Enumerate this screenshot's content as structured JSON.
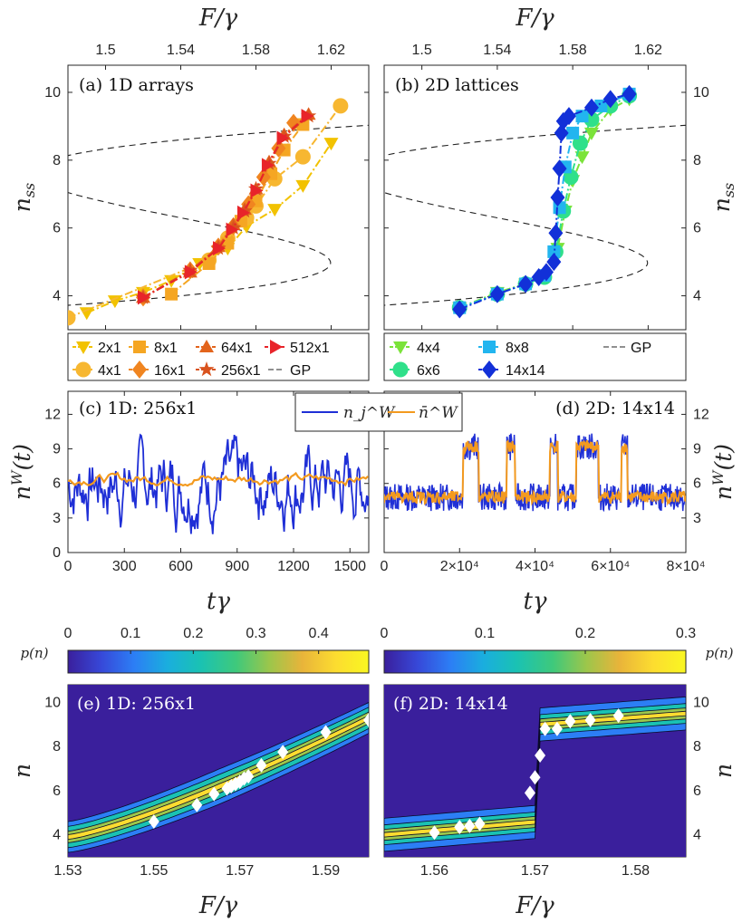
{
  "chart_data": [
    {
      "id": "a",
      "type": "line",
      "title": "(a) 1D arrays",
      "xlabel": "F/γ",
      "ylabel": "n_ss",
      "xlim": [
        1.48,
        1.64
      ],
      "ylim": [
        3,
        10.8
      ],
      "xticks": [
        "1.5",
        "1.54",
        "1.58",
        "1.62"
      ],
      "yticks": [
        "4",
        "6",
        "8",
        "10"
      ],
      "series": [
        {
          "name": "2x1",
          "color": "#f2c200",
          "marker": "tri-down",
          "x": [
            1.49,
            1.505,
            1.52,
            1.535,
            1.55,
            1.565,
            1.575,
            1.59,
            1.605,
            1.62
          ],
          "y": [
            3.5,
            3.85,
            4.1,
            4.45,
            4.95,
            5.4,
            6.05,
            6.55,
            7.25,
            8.5
          ]
        },
        {
          "name": "4x1",
          "color": "#f7b731",
          "marker": "circle",
          "x": [
            1.48,
            1.555,
            1.565,
            1.575,
            1.58,
            1.59,
            1.605,
            1.625
          ],
          "y": [
            3.35,
            5.05,
            5.7,
            6.3,
            6.65,
            7.45,
            8.1,
            9.6
          ]
        },
        {
          "name": "8x1",
          "color": "#f5a623",
          "marker": "square",
          "x": [
            1.535,
            1.555,
            1.565,
            1.572,
            1.58,
            1.588,
            1.595,
            1.605
          ],
          "y": [
            4.05,
            4.95,
            5.55,
            6.2,
            6.8,
            7.6,
            8.3,
            9.05
          ]
        },
        {
          "name": "16x1",
          "color": "#f08520",
          "marker": "diamond",
          "x": [
            1.52,
            1.545,
            1.56,
            1.568,
            1.576,
            1.584,
            1.592,
            1.6
          ],
          "y": [
            3.95,
            4.75,
            5.45,
            6.05,
            6.7,
            7.5,
            8.35,
            9.1
          ]
        },
        {
          "name": "64x1",
          "color": "#e3641c",
          "marker": "triangle",
          "x": [
            1.52,
            1.545,
            1.56,
            1.568,
            1.574,
            1.58,
            1.587,
            1.595,
            1.608
          ],
          "y": [
            3.95,
            4.7,
            5.45,
            6.1,
            6.55,
            7.15,
            7.95,
            8.75,
            9.35
          ]
        },
        {
          "name": "256x1",
          "color": "#d9531e",
          "marker": "star",
          "x": [
            1.52,
            1.545,
            1.56,
            1.568,
            1.574,
            1.58,
            1.587,
            1.595,
            1.608
          ],
          "y": [
            3.95,
            4.75,
            5.4,
            6.0,
            6.5,
            7.15,
            7.9,
            8.7,
            9.3
          ]
        },
        {
          "name": "512x1",
          "color": "#e8242a",
          "marker": "tri-right",
          "x": [
            1.52,
            1.545,
            1.56,
            1.567,
            1.573,
            1.58,
            1.586,
            1.594,
            1.607
          ],
          "y": [
            3.95,
            4.7,
            5.4,
            5.95,
            6.45,
            7.1,
            7.85,
            8.65,
            9.3
          ]
        }
      ],
      "gp_label": "GP"
    },
    {
      "id": "b",
      "type": "line",
      "title": "(b) 2D lattices",
      "xlabel": "F/γ",
      "ylabel": "n_ss",
      "xlim": [
        1.48,
        1.64
      ],
      "ylim": [
        3,
        10.8
      ],
      "xticks": [
        "1.5",
        "1.54",
        "1.58",
        "1.62"
      ],
      "yticks": [
        "4",
        "6",
        "8",
        "10"
      ],
      "series": [
        {
          "name": "4x4",
          "color": "#7be33a",
          "marker": "tri-down",
          "x": [
            1.52,
            1.54,
            1.555,
            1.565,
            1.572,
            1.576,
            1.58,
            1.585,
            1.59,
            1.6,
            1.61
          ],
          "y": [
            3.65,
            4.1,
            4.35,
            4.6,
            5.4,
            6.5,
            7.4,
            8.1,
            8.8,
            9.5,
            9.8
          ]
        },
        {
          "name": "6x6",
          "color": "#2fe08a",
          "marker": "circle",
          "x": [
            1.52,
            1.54,
            1.555,
            1.565,
            1.571,
            1.575,
            1.579,
            1.584,
            1.59,
            1.6,
            1.61
          ],
          "y": [
            3.65,
            4.05,
            4.35,
            4.55,
            5.3,
            6.5,
            7.5,
            8.5,
            9.2,
            9.6,
            9.9
          ]
        },
        {
          "name": "8x8",
          "color": "#22b5ef",
          "marker": "square",
          "x": [
            1.52,
            1.54,
            1.555,
            1.565,
            1.57,
            1.573,
            1.576,
            1.58,
            1.585,
            1.595,
            1.61
          ],
          "y": [
            3.65,
            4.05,
            4.35,
            4.6,
            5.3,
            6.6,
            7.8,
            8.8,
            9.3,
            9.6,
            9.95
          ]
        },
        {
          "name": "14x14",
          "color": "#1230d8",
          "marker": "diamond",
          "x": [
            1.52,
            1.54,
            1.555,
            1.562,
            1.566,
            1.57,
            1.571,
            1.572,
            1.573,
            1.574,
            1.575,
            1.578,
            1.59,
            1.6,
            1.61
          ],
          "y": [
            3.6,
            4.05,
            4.35,
            4.55,
            4.7,
            5.0,
            5.85,
            6.9,
            7.75,
            8.8,
            9.15,
            9.3,
            9.55,
            9.8,
            9.95
          ]
        }
      ],
      "gp_label": "GP"
    },
    {
      "id": "c",
      "type": "line",
      "title": "(c) 1D: 256x1",
      "xlabel": "tγ",
      "ylabel": "n^W(t)",
      "xlim": [
        0,
        1600
      ],
      "ylim": [
        0,
        14
      ],
      "xticks": [
        "0",
        "300",
        "600",
        "900",
        "1200",
        "1500"
      ],
      "yticks": [
        "0",
        "3",
        "6",
        "9",
        "12"
      ],
      "series": [
        {
          "name": "n_j^W",
          "color": "#1f2fd6",
          "mean": 6.0,
          "amplitude": 3.6
        },
        {
          "name": "n̄^W",
          "color": "#f39a1f",
          "mean": 6.4,
          "amplitude": 0.5
        }
      ]
    },
    {
      "id": "d",
      "type": "line",
      "title": "(d) 2D: 14x14",
      "xlabel": "tγ",
      "ylabel": "n^W(t)",
      "xlim": [
        0,
        80000
      ],
      "ylim": [
        0,
        14
      ],
      "xticks": [
        "0",
        "2×10⁴",
        "4×10⁴",
        "6×10⁴",
        "8×10⁴"
      ],
      "yticks": [
        "3",
        "6",
        "9",
        "12"
      ],
      "levels": {
        "low": 4.8,
        "high": 9.2
      },
      "high_intervals": [
        [
          21000,
          25000
        ],
        [
          32500,
          34700
        ],
        [
          44000,
          46000
        ],
        [
          51000,
          56800
        ],
        [
          63000,
          64500
        ]
      ]
    },
    {
      "id": "e",
      "type": "heatmap",
      "title": "(e) 1D: 256x1",
      "xlabel": "F/γ",
      "ylabel": "n",
      "xlim": [
        1.53,
        1.6
      ],
      "ylim": [
        3,
        10.8
      ],
      "xticks": [
        "1.53",
        "1.55",
        "1.57",
        "1.59"
      ],
      "yticks": [
        "4",
        "6",
        "8",
        "10"
      ],
      "colorbar": {
        "label": "p(n)",
        "range": [
          0,
          0.48
        ],
        "ticks": [
          "0",
          "0.1",
          "0.2",
          "0.3",
          "0.4"
        ]
      },
      "points": {
        "x": [
          1.55,
          1.56,
          1.564,
          1.567,
          1.568,
          1.569,
          1.57,
          1.571,
          1.572,
          1.575,
          1.58,
          1.59,
          1.6
        ],
        "y": [
          4.6,
          5.35,
          5.85,
          6.1,
          6.2,
          6.3,
          6.4,
          6.55,
          6.65,
          7.15,
          7.75,
          8.65,
          9.2
        ]
      }
    },
    {
      "id": "f",
      "type": "heatmap",
      "title": "(f) 2D: 14x14",
      "xlabel": "F/γ",
      "ylabel": "n",
      "xlim": [
        1.555,
        1.585
      ],
      "ylim": [
        3,
        10.8
      ],
      "xticks": [
        "1.56",
        "1.57",
        "1.58"
      ],
      "yticks": [
        "4",
        "6",
        "8",
        "10"
      ],
      "colorbar": {
        "label": "p(n)",
        "range": [
          0,
          0.3
        ],
        "ticks": [
          "0",
          "0.1",
          "0.2",
          "0.3"
        ]
      },
      "points": {
        "x": [
          1.56,
          1.5625,
          1.5635,
          1.5645,
          1.5695,
          1.57,
          1.5705,
          1.571,
          1.5722,
          1.5735,
          1.5755,
          1.5783
        ],
        "y": [
          4.1,
          4.35,
          4.4,
          4.5,
          5.9,
          6.6,
          7.6,
          8.8,
          8.8,
          9.15,
          9.2,
          9.4
        ]
      }
    }
  ]
}
